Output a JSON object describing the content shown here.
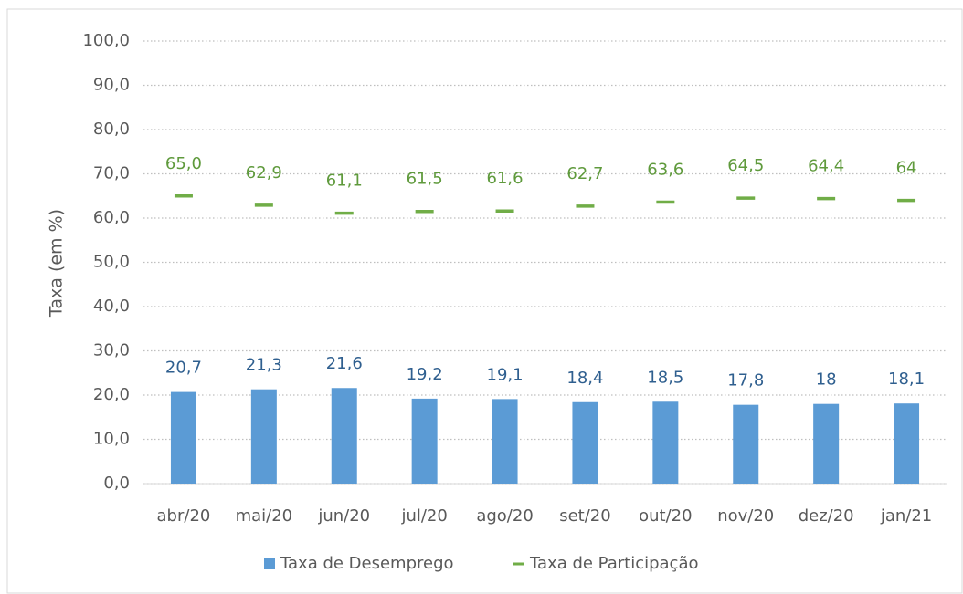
{
  "chart_data": {
    "type": "bar",
    "ylabel": "Taxa (em %)",
    "categories": [
      "abr/20",
      "mai/20",
      "jun/20",
      "jul/20",
      "ago/20",
      "set/20",
      "out/20",
      "nov/20",
      "dez/20",
      "jan/21"
    ],
    "series": [
      {
        "name": "Taxa de Desemprego",
        "type": "bar",
        "color": "#5b9bd5",
        "label_color": "#2f5f8f",
        "values": [
          20.7,
          21.3,
          21.6,
          19.2,
          19.1,
          18.4,
          18.5,
          17.8,
          18,
          18.1
        ],
        "value_labels": [
          "20,7",
          "21,3",
          "21,6",
          "19,2",
          "19,1",
          "18,4",
          "18,5",
          "17,8",
          "18",
          "18,1"
        ]
      },
      {
        "name": "Taxa de Participação",
        "type": "dash",
        "color": "#70ad47",
        "label_color": "#5f9a3c",
        "values": [
          65.0,
          62.9,
          61.1,
          61.5,
          61.6,
          62.7,
          63.6,
          64.5,
          64.4,
          64
        ],
        "value_labels": [
          "65,0",
          "62,9",
          "61,1",
          "61,5",
          "61,6",
          "62,7",
          "63,6",
          "64,5",
          "64,4",
          "64"
        ]
      }
    ],
    "ylim": [
      0,
      100
    ],
    "yticks": [
      {
        "value": 0,
        "label": "0,0"
      },
      {
        "value": 10,
        "label": "10,0"
      },
      {
        "value": 20,
        "label": "20,0"
      },
      {
        "value": 30,
        "label": "30,0"
      },
      {
        "value": 40,
        "label": "40,0"
      },
      {
        "value": 50,
        "label": "50,0"
      },
      {
        "value": 60,
        "label": "60,0"
      },
      {
        "value": 70,
        "label": "70,0"
      },
      {
        "value": 80,
        "label": "80,0"
      },
      {
        "value": 90,
        "label": "90,0"
      },
      {
        "value": 100,
        "label": "100,0"
      }
    ],
    "grid": true,
    "legend": "bottom"
  }
}
